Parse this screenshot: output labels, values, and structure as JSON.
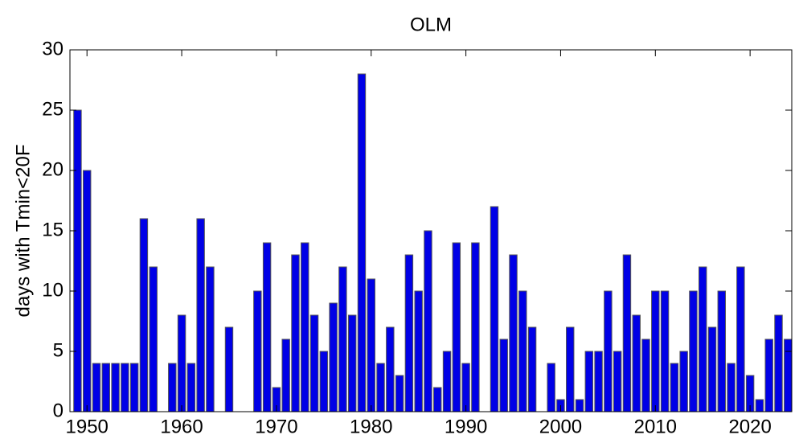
{
  "chart_data": {
    "type": "bar",
    "title": "OLM",
    "ylabel": "days with Tmin<20F",
    "x": [
      1949,
      1950,
      1951,
      1952,
      1953,
      1954,
      1955,
      1956,
      1957,
      1958,
      1959,
      1960,
      1961,
      1962,
      1963,
      1964,
      1965,
      1966,
      1967,
      1968,
      1969,
      1970,
      1971,
      1972,
      1973,
      1974,
      1975,
      1976,
      1977,
      1978,
      1979,
      1980,
      1981,
      1982,
      1983,
      1984,
      1985,
      1986,
      1987,
      1988,
      1989,
      1990,
      1991,
      1992,
      1993,
      1994,
      1995,
      1996,
      1997,
      1998,
      1999,
      2000,
      2001,
      2002,
      2003,
      2004,
      2005,
      2006,
      2007,
      2008,
      2009,
      2010,
      2011,
      2012,
      2013,
      2014,
      2015,
      2016,
      2017,
      2018,
      2019,
      2020,
      2021,
      2022,
      2023,
      2024
    ],
    "values": [
      25,
      20,
      4,
      4,
      4,
      4,
      4,
      16,
      12,
      0,
      4,
      8,
      4,
      16,
      12,
      0,
      7,
      0,
      0,
      10,
      14,
      2,
      6,
      13,
      14,
      8,
      5,
      9,
      12,
      8,
      28,
      11,
      4,
      7,
      3,
      13,
      10,
      15,
      2,
      5,
      14,
      4,
      14,
      0,
      17,
      6,
      13,
      10,
      7,
      0,
      4,
      1,
      7,
      1,
      5,
      5,
      10,
      5,
      13,
      8,
      6,
      10,
      10,
      4,
      5,
      10,
      12,
      7,
      10,
      4,
      12,
      3,
      1,
      6,
      8,
      6
    ],
    "color": "#0000e6",
    "edgecolor": "#555555",
    "xlim": [
      1948.2,
      2024.4
    ],
    "xticks": [
      1950,
      1960,
      1970,
      1980,
      1990,
      2000,
      2010,
      2020
    ],
    "ylim": [
      0,
      30
    ],
    "yticks": [
      0,
      5,
      10,
      15,
      20,
      25,
      30
    ],
    "grid": false
  }
}
